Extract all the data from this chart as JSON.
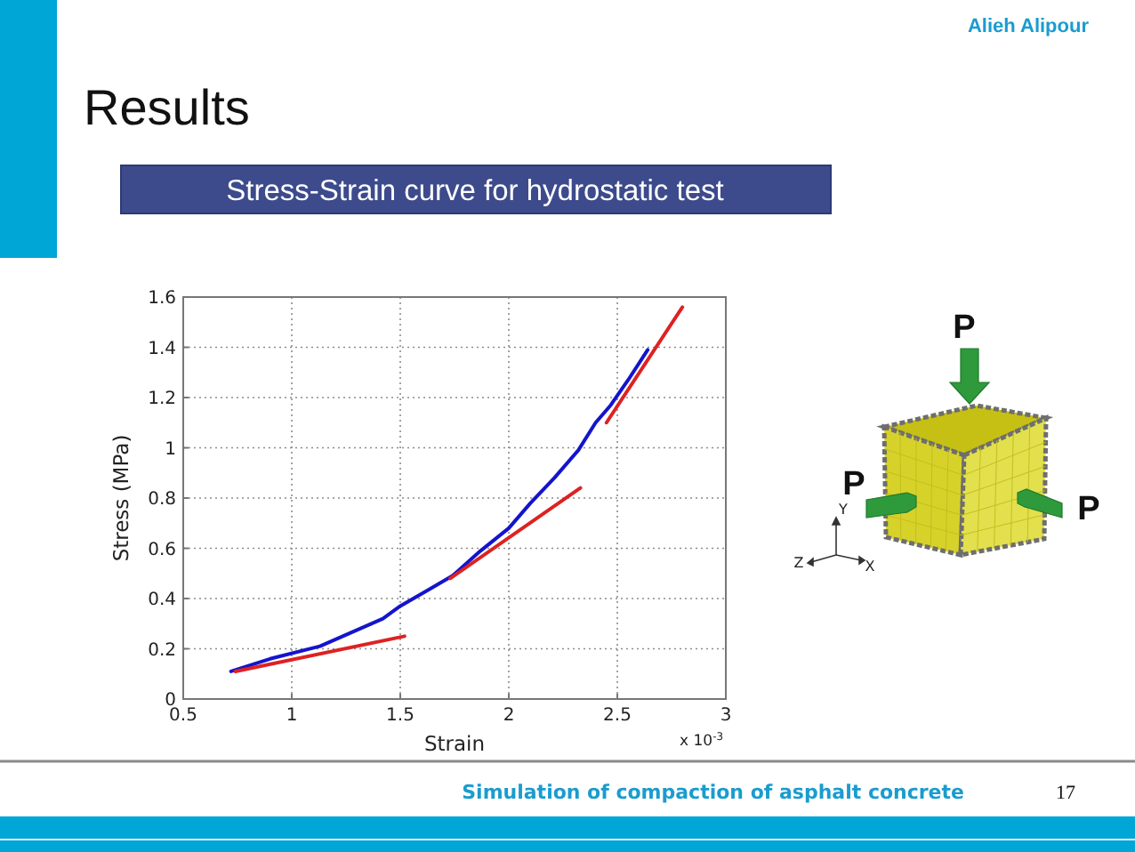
{
  "chart_data": {
    "type": "line",
    "title": "Results",
    "subtitle": "Stress-Strain curve for hydrostatic test",
    "xlabel": "Strain",
    "ylabel": "Stress (MPa)",
    "xlim": [
      0.5,
      3
    ],
    "ylim": [
      0,
      1.6
    ],
    "xticks": [
      0.5,
      1,
      1.5,
      2,
      2.5,
      3
    ],
    "yticks": [
      0,
      0.2,
      0.4,
      0.6,
      0.8,
      1,
      1.2,
      1.4,
      1.6
    ],
    "grid": true,
    "series": [
      {
        "color": "#1414cc",
        "x": [
          0.72,
          0.9,
          1.13,
          1.42,
          1.5,
          1.64,
          1.74,
          1.87,
          2.0,
          2.1,
          2.21,
          2.32,
          2.4,
          2.47,
          2.55,
          2.64
        ],
        "values": [
          0.11,
          0.16,
          0.21,
          0.32,
          0.37,
          0.44,
          0.49,
          0.59,
          0.68,
          0.78,
          0.88,
          0.99,
          1.1,
          1.17,
          1.27,
          1.39
        ]
      },
      {
        "color": "#dd2222",
        "x": [
          0.74,
          1.52
        ],
        "values": [
          0.11,
          0.25
        ]
      },
      {
        "color": "#dd2222",
        "x": [
          1.73,
          2.33
        ],
        "values": [
          0.48,
          0.84
        ]
      },
      {
        "color": "#dd2222",
        "x": [
          2.45,
          2.8
        ],
        "values": [
          1.1,
          1.56
        ]
      }
    ],
    "annotations": [
      "Alieh Alipour",
      "x 10$^{-3}$",
      "Simulation of compaction of asphalt concrete",
      "17",
      "P",
      "P",
      "P",
      "Y",
      "Z",
      "X"
    ]
  }
}
